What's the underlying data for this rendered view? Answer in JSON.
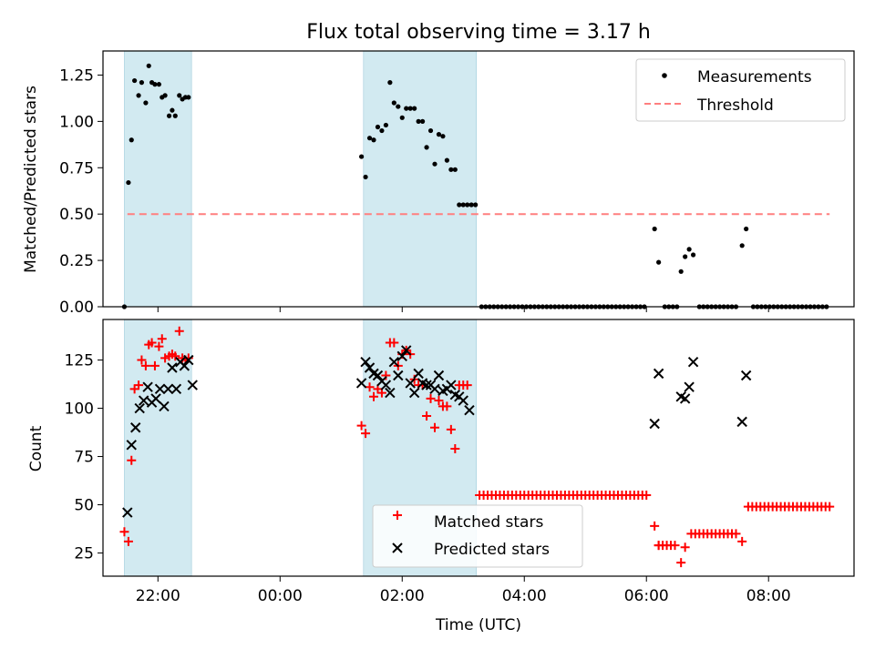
{
  "chart_data": [
    {
      "panel": "top",
      "type": "scatter",
      "title": "Flux total observing time = 3.17 h",
      "ylabel": "Matched/Predicted stars",
      "xlabel": "",
      "ylim": [
        0,
        1.38
      ],
      "yticks": [
        "0.00",
        "0.25",
        "0.50",
        "0.75",
        "1.00",
        "1.25"
      ],
      "ytick_values": [
        0,
        0.25,
        0.5,
        0.75,
        1.0,
        1.25
      ],
      "legend": {
        "placement": "top-right",
        "entries": [
          "Measurements",
          "Threshold"
        ]
      },
      "colors": {
        "measurements": "#000000",
        "threshold": "#ff7f7f",
        "shade": "#add8e6"
      },
      "threshold": {
        "name": "Threshold",
        "y": 0.5,
        "x_range": [
          "21:30",
          "09:00"
        ]
      },
      "series": [
        {
          "name": "Measurements",
          "x": [
            "21:27",
            "21:31",
            "21:34",
            "21:37",
            "21:41",
            "21:44",
            "21:48",
            "21:51",
            "21:54",
            "21:57",
            "22:01",
            "22:04",
            "22:07",
            "22:11",
            "22:14",
            "22:17",
            "22:21",
            "22:24",
            "22:27",
            "22:30",
            "01:20",
            "01:24",
            "01:28",
            "01:32",
            "01:36",
            "01:40",
            "01:44",
            "01:48",
            "01:52",
            "01:56",
            "02:00",
            "02:04",
            "02:08",
            "02:12",
            "02:16",
            "02:20",
            "02:24",
            "02:28",
            "02:32",
            "02:36",
            "02:40",
            "02:44",
            "02:48",
            "02:52",
            "02:56",
            "03:00",
            "03:04",
            "03:08",
            "03:12",
            "06:08",
            "06:12",
            "06:34",
            "06:38",
            "06:42",
            "06:46",
            "07:34",
            "07:38"
          ],
          "y": [
            0.0,
            0.67,
            0.9,
            1.22,
            1.14,
            1.21,
            1.1,
            1.3,
            1.21,
            1.2,
            1.2,
            1.13,
            1.14,
            1.03,
            1.06,
            1.03,
            1.14,
            1.12,
            1.13,
            1.13,
            0.81,
            0.7,
            0.91,
            0.9,
            0.97,
            0.95,
            0.98,
            1.21,
            1.1,
            1.08,
            1.02,
            1.07,
            1.07,
            1.07,
            1.0,
            1.0,
            0.86,
            0.95,
            0.77,
            0.93,
            0.92,
            0.79,
            0.74,
            0.74,
            0.55,
            0.55,
            0.55,
            0.55,
            0.55,
            0.42,
            0.24,
            0.19,
            0.27,
            0.31,
            0.28,
            0.33,
            0.42
          ],
          "zero_runs": [
            [
              "03:18",
              "05:58"
            ],
            [
              "06:18",
              "06:30"
            ],
            [
              "06:52",
              "07:28"
            ],
            [
              "07:45",
              "09:00"
            ]
          ]
        }
      ]
    },
    {
      "panel": "bottom",
      "type": "scatter",
      "xlabel": "Time (UTC)",
      "ylabel": "Count",
      "ylim": [
        13,
        146
      ],
      "yticks": [
        "25",
        "50",
        "75",
        "100",
        "125"
      ],
      "ytick_values": [
        25,
        50,
        75,
        100,
        125
      ],
      "xticks": [
        "22:00",
        "00:00",
        "02:00",
        "04:00",
        "06:00",
        "08:00"
      ],
      "legend": {
        "placement": "lower-center",
        "entries": [
          "Matched stars",
          "Predicted stars"
        ]
      },
      "colors": {
        "matched": "#ff0000",
        "predicted": "#000000",
        "shade": "#add8e6"
      },
      "shaded_intervals": [
        [
          "21:27",
          "22:33"
        ],
        [
          "01:22",
          "03:13"
        ]
      ],
      "series": [
        {
          "name": "Matched stars",
          "marker": "+",
          "x": [
            "21:27",
            "21:31",
            "21:34",
            "21:37",
            "21:41",
            "21:44",
            "21:48",
            "21:51",
            "21:54",
            "21:57",
            "22:01",
            "22:04",
            "22:07",
            "22:11",
            "22:14",
            "22:17",
            "22:21",
            "22:24",
            "22:27",
            "22:30",
            "01:20",
            "01:24",
            "01:28",
            "01:32",
            "01:36",
            "01:40",
            "01:44",
            "01:48",
            "01:52",
            "01:56",
            "02:00",
            "02:04",
            "02:08",
            "02:12",
            "02:16",
            "02:20",
            "02:24",
            "02:28",
            "02:32",
            "02:36",
            "02:40",
            "02:44",
            "02:48",
            "02:52",
            "02:56",
            "03:00",
            "03:04",
            "06:08",
            "06:12",
            "06:34",
            "06:38",
            "07:34"
          ],
          "y": [
            36,
            31,
            73,
            110,
            112,
            125,
            122,
            133,
            134,
            122,
            132,
            136,
            126,
            127,
            128,
            127,
            140,
            126,
            125,
            126,
            91,
            87,
            111,
            106,
            110,
            108,
            117,
            134,
            134,
            122,
            128,
            130,
            128,
            115,
            112,
            112,
            96,
            105,
            90,
            104,
            101,
            101,
            89,
            79,
            112,
            112,
            112,
            39,
            29,
            20,
            28,
            31
          ],
          "runs": [
            {
              "y": 55,
              "from": "03:16",
              "to": "06:00"
            },
            {
              "y": 29,
              "from": "06:12",
              "to": "06:30"
            },
            {
              "y": 35,
              "from": "06:44",
              "to": "07:28"
            },
            {
              "y": 49,
              "from": "07:40",
              "to": "09:03"
            }
          ]
        },
        {
          "name": "Predicted stars",
          "marker": "x",
          "x": [
            "21:30",
            "21:34",
            "21:38",
            "21:42",
            "21:46",
            "21:50",
            "21:54",
            "21:58",
            "22:02",
            "22:06",
            "22:10",
            "22:14",
            "22:18",
            "22:22",
            "22:26",
            "22:30",
            "22:34",
            "01:20",
            "01:24",
            "01:28",
            "01:32",
            "01:36",
            "01:40",
            "01:44",
            "01:48",
            "01:52",
            "01:56",
            "02:00",
            "02:04",
            "02:08",
            "02:12",
            "02:16",
            "02:20",
            "02:24",
            "02:28",
            "02:32",
            "02:36",
            "02:40",
            "02:44",
            "02:48",
            "02:52",
            "02:56",
            "03:00",
            "03:06",
            "06:08",
            "06:12",
            "06:34",
            "06:38",
            "06:42",
            "06:46",
            "07:34",
            "07:38"
          ],
          "y": [
            46,
            81,
            90,
            100,
            104,
            111,
            103,
            105,
            110,
            101,
            110,
            121,
            110,
            124,
            122,
            125,
            112,
            113,
            124,
            121,
            118,
            117,
            114,
            112,
            108,
            124,
            117,
            127,
            130,
            113,
            108,
            118,
            113,
            112,
            112,
            110,
            117,
            109,
            110,
            112,
            107,
            106,
            104,
            99,
            92,
            118,
            106,
            105,
            111,
            124,
            93,
            117
          ]
        }
      ]
    }
  ]
}
